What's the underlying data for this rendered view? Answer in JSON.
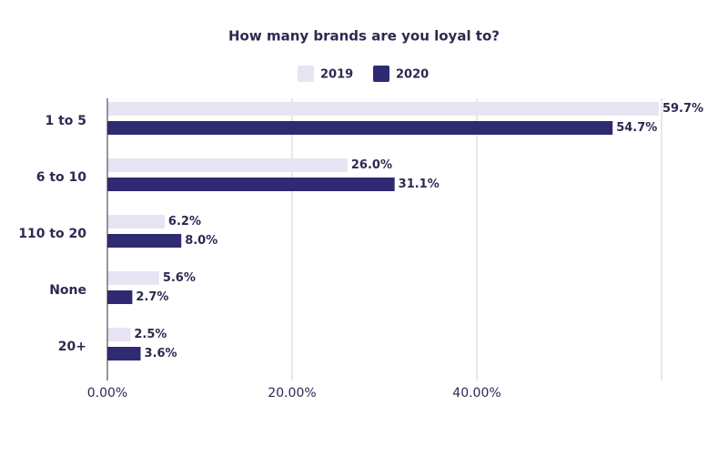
{
  "chart_data": {
    "type": "hbar",
    "title": "How many brands are you loyal to?",
    "categories": [
      "1 to 5",
      "6 to 10",
      "110 to 20",
      "None",
      "20+"
    ],
    "series": [
      {
        "name": "2019",
        "color": "#e7e4f4",
        "values": [
          59.7,
          26.0,
          6.2,
          5.6,
          2.5
        ],
        "value_labels": [
          "59.7%",
          "26.0%",
          "6.2%",
          "5.6%",
          "2.5%"
        ]
      },
      {
        "name": "2020",
        "color": "#2f2a72",
        "values": [
          54.7,
          31.1,
          8.0,
          2.7,
          3.6
        ],
        "value_labels": [
          "54.7%",
          "31.1%",
          "8.0%",
          "2.7%",
          "3.6%"
        ]
      }
    ],
    "xlim": [
      0,
      60
    ],
    "xticks": [
      {
        "value": 0,
        "label": "0.00%"
      },
      {
        "value": 20,
        "label": "20.00%"
      },
      {
        "value": 40,
        "label": "40.00%"
      }
    ],
    "grid": true,
    "legend": "top"
  }
}
